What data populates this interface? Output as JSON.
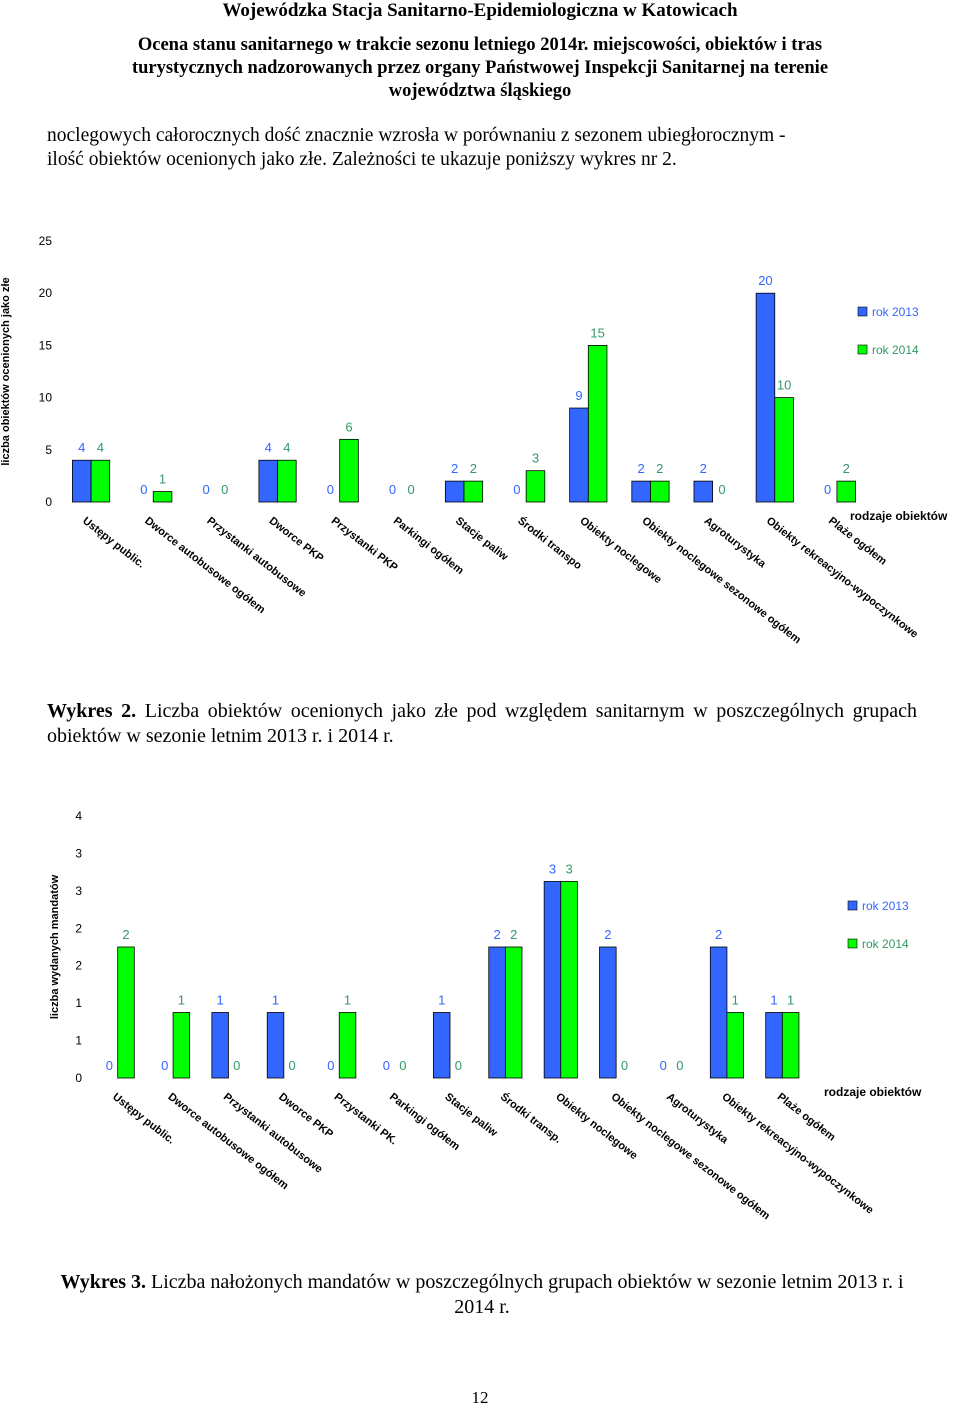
{
  "header": {
    "line1": "Wojewódzka Stacja Sanitarno-Epidemiologiczna w Katowicach",
    "line2": "Ocena stanu sanitarnego w trakcie sezonu letniego 2014r. miejscowości, obiektów i tras",
    "line3": "turystycznych nadzorowanych przez organy Państwowej Inspekcji Sanitarnej na terenie",
    "line4": "województwa śląskiego"
  },
  "intro": {
    "line1": "noclegowych całorocznych dość znacznie wzrosła w porównaniu z sezonem ubiegłorocznym -",
    "line2": "ilość obiektów ocenionych jako złe. Zależności te ukazuje poniższy wykres nr 2."
  },
  "caption1": {
    "label": "Wykres 2.",
    "text": "Liczba obiektów ocenionych jako złe pod względem sanitarnym w poszczególnych grupach obiektów w sezonie letnim 2013 r. i 2014 r."
  },
  "caption2": {
    "label": "Wykres 3.",
    "text": "Liczba  nałożonych mandatów w poszczególnych grupach obiektów w sezonie letnim 2013 r. i 2014 r."
  },
  "page_number": "12",
  "colors": {
    "series_2013": "#3366ff",
    "series_2014": "#00ff00",
    "label_2013": "#3366ff",
    "label_2014": "#339966"
  },
  "chart_data": [
    {
      "type": "bar",
      "ylabel": "liczba obiektów ocenionych jako złe",
      "xlabel": "rodzaje obiektów",
      "ylim": [
        0,
        25
      ],
      "yticks": [
        "0",
        "5",
        "10",
        "15",
        "20",
        "25"
      ],
      "legend_position": "right",
      "categories": [
        "Ustępy public.",
        "Dworce autobusowe ogółem",
        "Przystanki autobusowe",
        "Dworce PKP",
        "Przystanki PKP",
        "Parkingi ogółem",
        "Stacje paliw",
        "Środki transpo",
        "Obiekty noclegowe",
        "Obiekty noclegowe sezonowe ogółem",
        "Agroturystyka",
        "Obiekty rekreacyjno-wypoczynkowe",
        "Plaże ogółem"
      ],
      "series": [
        {
          "name": "rok 2013",
          "values": [
            4,
            0,
            0,
            4,
            0,
            0,
            2,
            0,
            9,
            2,
            2,
            20,
            0
          ],
          "labels": [
            "4",
            "0",
            "0",
            "4",
            "0",
            "0",
            "2",
            "0",
            "9",
            "2",
            "2",
            "20",
            "0"
          ]
        },
        {
          "name": "rok 2014",
          "values": [
            4,
            1,
            0,
            4,
            6,
            0,
            2,
            3,
            15,
            2,
            0,
            10,
            2
          ],
          "labels": [
            "4",
            "1",
            "0",
            "4",
            "6",
            "0",
            "2",
            "3",
            "15",
            "2",
            "0",
            "10",
            "2"
          ]
        }
      ]
    },
    {
      "type": "bar",
      "ylabel": "liczba wydanych mandatów",
      "xlabel": "rodzaje obiektów",
      "ylim": [
        0,
        4
      ],
      "yticks": [
        "0",
        "1",
        "1",
        "2",
        "2",
        "3",
        "3",
        "4"
      ],
      "legend_position": "right",
      "categories": [
        "Ustępy public.",
        "Dworce autobusowe ogółem",
        "Przystanki autobusowe",
        "Dworce PKP",
        "Przystanki PK.",
        "Parkingi ogółem",
        "Stacje paliw",
        "Środki transp.",
        "Obiekty noclegowe",
        "Obiekty noclegowe sezonowe ogółem",
        "Agroturystyka",
        "Obiekty rekreacyjno-wypoczynkowe",
        "Plaże ogółem"
      ],
      "series": [
        {
          "name": "rok 2013",
          "values": [
            0,
            0,
            1,
            1,
            0,
            0,
            1,
            2,
            3,
            2,
            0,
            2,
            1
          ],
          "labels": [
            "0",
            "0",
            "1",
            "1",
            "0",
            "0",
            "1",
            "2",
            "3",
            "2",
            "0",
            "2",
            "1"
          ]
        },
        {
          "name": "rok 2014",
          "values": [
            2,
            1,
            0,
            0,
            1,
            0,
            0,
            2,
            3,
            0,
            0,
            1,
            1
          ],
          "labels": [
            "2",
            "1",
            "0",
            "0",
            "1",
            "0",
            "0",
            "2",
            "3",
            "0",
            "0",
            "1",
            "1"
          ]
        }
      ]
    }
  ]
}
